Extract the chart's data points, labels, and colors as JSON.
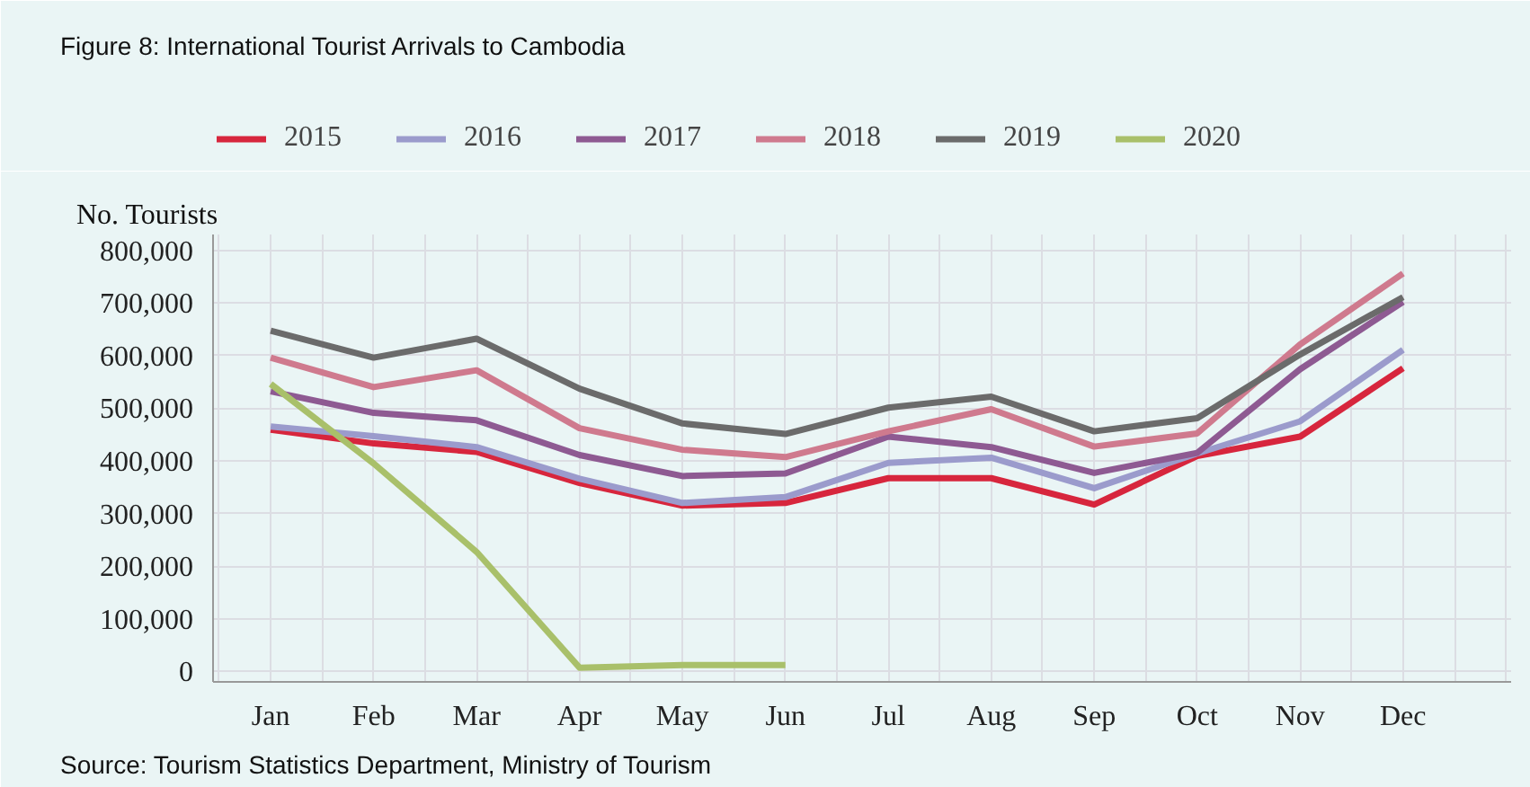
{
  "chart_data": {
    "type": "line",
    "title": "Figure 8: International Tourist Arrivals to Cambodia",
    "ylabel": "No. Tourists",
    "categories": [
      "Jan",
      "Feb",
      "Mar",
      "Apr",
      "May",
      "Jun",
      "Jul",
      "Aug",
      "Sep",
      "Oct",
      "Nov",
      "Dec"
    ],
    "series": [
      {
        "name": "2015",
        "color": "#d7263d",
        "values": [
          459000,
          433000,
          417000,
          358000,
          315000,
          320000,
          367000,
          367000,
          317000,
          409000,
          446000,
          576000
        ]
      },
      {
        "name": "2016",
        "color": "#9b9bcc",
        "values": [
          465000,
          447000,
          426000,
          366000,
          320000,
          331000,
          396000,
          406000,
          348000,
          414000,
          475000,
          611000
        ]
      },
      {
        "name": "2017",
        "color": "#8e5a92",
        "values": [
          532000,
          491000,
          477000,
          411000,
          371000,
          376000,
          446000,
          426000,
          377000,
          415000,
          574000,
          702000
        ]
      },
      {
        "name": "2018",
        "color": "#cf7a8e",
        "values": [
          596000,
          540000,
          572000,
          462000,
          421000,
          407000,
          456000,
          498000,
          427000,
          452000,
          621000,
          756000
        ]
      },
      {
        "name": "2019",
        "color": "#6b6b6b",
        "values": [
          647000,
          596000,
          632000,
          537000,
          471000,
          451000,
          501000,
          522000,
          456000,
          481000,
          602000,
          711000
        ]
      },
      {
        "name": "2020",
        "color": "#a9c06a",
        "values": [
          546000,
          395000,
          227000,
          7000,
          12000,
          12000,
          null,
          null,
          null,
          null,
          null,
          null
        ]
      }
    ],
    "ylim": [
      -20000,
      830000
    ],
    "yticks": [
      {
        "value": 0,
        "label": "0"
      },
      {
        "value": 100000,
        "label": "100,000"
      },
      {
        "value": 200000,
        "label": "200,000"
      },
      {
        "value": 300000,
        "label": "300,000"
      },
      {
        "value": 400000,
        "label": "400,000"
      },
      {
        "value": 500000,
        "label": "500,000"
      },
      {
        "value": 600000,
        "label": "600,000"
      },
      {
        "value": 700000,
        "label": "700,000"
      },
      {
        "value": 800000,
        "label": "800,000"
      }
    ],
    "grid": true,
    "legend": "top",
    "line_style": "solid",
    "marker": "none",
    "annotations": [
      "Source: Tourism Statistics Department, Ministry of Tourism"
    ]
  }
}
